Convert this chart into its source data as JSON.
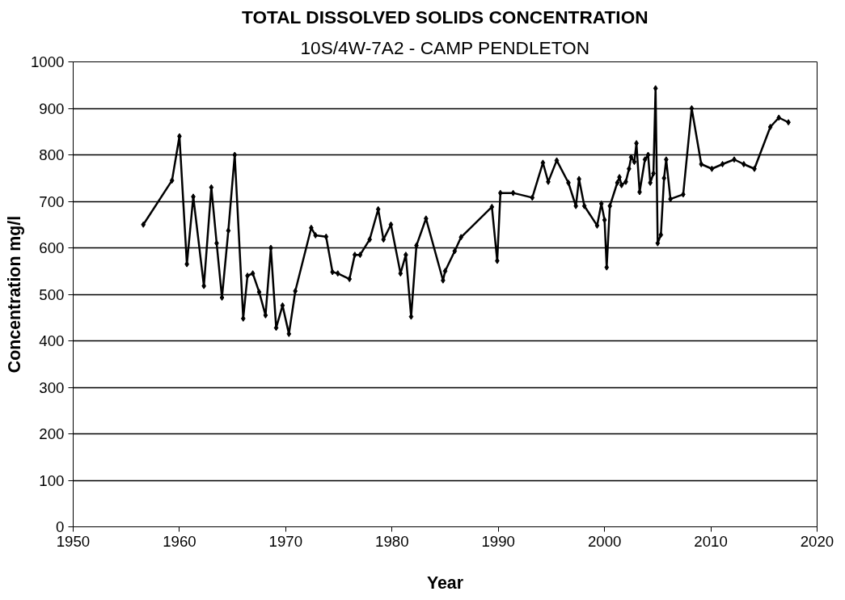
{
  "chart_data": {
    "type": "line",
    "title": "TOTAL DISSOLVED SOLIDS CONCENTRATION",
    "subtitle": "10S/4W-7A2 - CAMP PENDLETON",
    "xlabel": "Year",
    "ylabel": "Concentration mg/l",
    "xlim": [
      1950,
      2020
    ],
    "xticks": [
      1950,
      1960,
      1970,
      1980,
      1990,
      2000,
      2010,
      2020
    ],
    "ylim": [
      0,
      1000
    ],
    "yticks": [
      0,
      100,
      200,
      300,
      400,
      500,
      600,
      700,
      800,
      900,
      1000
    ],
    "grid": "y",
    "marker": "diamond",
    "line_style": "solid",
    "series": [
      {
        "color": "#000000",
        "x": [
          1956.6,
          1959.3,
          1960.0,
          1960.7,
          1961.3,
          1962.3,
          1963.0,
          1963.5,
          1964.0,
          1964.6,
          1965.2,
          1966.0,
          1966.4,
          1966.9,
          1967.5,
          1968.1,
          1968.6,
          1969.1,
          1969.7,
          1970.3,
          1970.9,
          1972.4,
          1972.8,
          1973.8,
          1974.4,
          1974.9,
          1976.0,
          1976.5,
          1977.0,
          1977.9,
          1978.7,
          1979.2,
          1979.9,
          1980.8,
          1981.3,
          1981.8,
          1982.3,
          1983.2,
          1984.8,
          1985.0,
          1985.9,
          1986.5,
          1989.4,
          1989.9,
          1990.2,
          1991.4,
          1993.2,
          1994.2,
          1994.7,
          1995.5,
          1996.6,
          1997.3,
          1997.6,
          1998.1,
          1999.3,
          1999.7,
          2000.0,
          2000.2,
          2000.5,
          2001.2,
          2001.4,
          2001.6,
          2002.0,
          2002.3,
          2002.5,
          2002.8,
          2003.0,
          2003.3,
          2003.8,
          2004.1,
          2004.3,
          2004.6,
          2004.8,
          2005.0,
          2005.3,
          2005.6,
          2005.8,
          2006.2,
          2007.4,
          2008.2,
          2009.1,
          2010.1,
          2011.1,
          2012.2,
          2013.1,
          2014.1,
          2015.6,
          2016.4,
          2017.3
        ],
        "values": [
          650,
          745,
          840,
          565,
          710,
          518,
          730,
          610,
          493,
          637,
          800,
          448,
          540,
          545,
          505,
          455,
          600,
          428,
          476,
          415,
          507,
          643,
          627,
          624,
          548,
          545,
          533,
          585,
          585,
          618,
          683,
          618,
          650,
          545,
          585,
          452,
          605,
          663,
          530,
          550,
          593,
          623,
          688,
          572,
          718,
          718,
          708,
          783,
          742,
          788,
          740,
          690,
          748,
          690,
          648,
          695,
          660,
          558,
          690,
          740,
          752,
          735,
          742,
          770,
          795,
          785,
          825,
          720,
          790,
          800,
          740,
          760,
          943,
          610,
          628,
          750,
          790,
          705,
          715,
          900,
          780,
          770,
          780,
          790,
          780,
          770,
          860,
          880,
          870
        ]
      }
    ]
  }
}
